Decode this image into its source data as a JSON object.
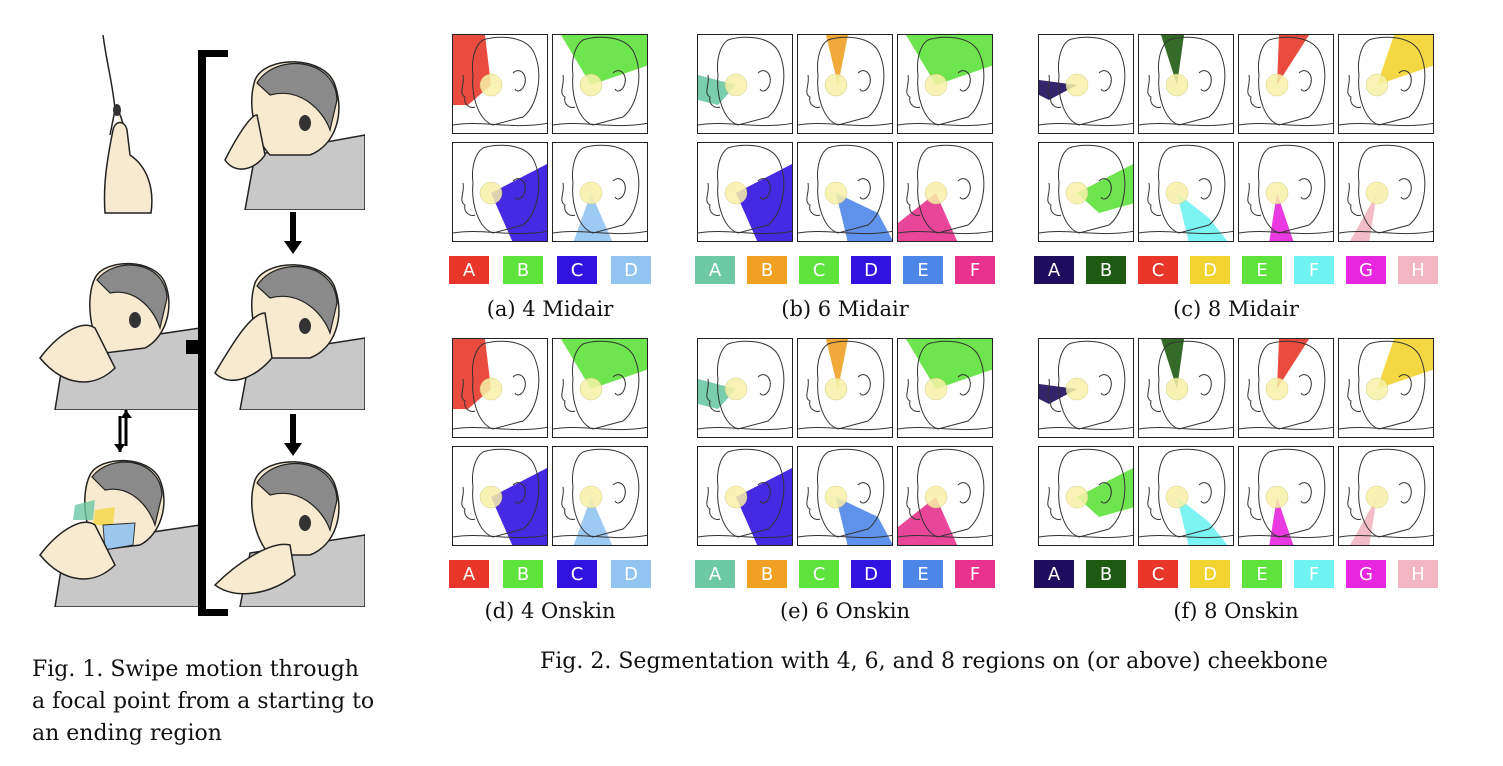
{
  "fig1": {
    "caption_lines": [
      "Fig. 1.  Swipe motion through",
      "a focal point from a starting to",
      "an ending region"
    ]
  },
  "fig2": {
    "caption": "Fig. 2.  Segmentation with 4, 6, and 8 regions on (or above) cheekbone",
    "panels": [
      {
        "caption": "(a) 4 Midair",
        "labels": [
          {
            "text": "A",
            "color": "#e8372a"
          },
          {
            "text": "B",
            "color": "#5ee23c"
          },
          {
            "text": "C",
            "color": "#3212e0"
          },
          {
            "text": "D",
            "color": "#92c4f2"
          }
        ]
      },
      {
        "caption": "(b) 6 Midair",
        "labels": [
          {
            "text": "A",
            "color": "#6cc9a4"
          },
          {
            "text": "B",
            "color": "#f0a023"
          },
          {
            "text": "C",
            "color": "#5ee23c"
          },
          {
            "text": "D",
            "color": "#3212e0"
          },
          {
            "text": "E",
            "color": "#4e86e8"
          },
          {
            "text": "F",
            "color": "#e8328e"
          }
        ]
      },
      {
        "caption": "(c) 8 Midair",
        "labels": [
          {
            "text": "A",
            "color": "#1e0c5c"
          },
          {
            "text": "B",
            "color": "#1f5a12"
          },
          {
            "text": "C",
            "color": "#e8372a"
          },
          {
            "text": "D",
            "color": "#f2d430"
          },
          {
            "text": "E",
            "color": "#5ee23c"
          },
          {
            "text": "F",
            "color": "#6ef2f2"
          },
          {
            "text": "G",
            "color": "#e826e0"
          },
          {
            "text": "H",
            "color": "#f2b6c2"
          }
        ]
      },
      {
        "caption": "(d) 4 Onskin",
        "labels": [
          {
            "text": "A",
            "color": "#e8372a"
          },
          {
            "text": "B",
            "color": "#5ee23c"
          },
          {
            "text": "C",
            "color": "#3212e0"
          },
          {
            "text": "D",
            "color": "#92c4f2"
          }
        ]
      },
      {
        "caption": "(e) 6 Onskin",
        "labels": [
          {
            "text": "A",
            "color": "#6cc9a4"
          },
          {
            "text": "B",
            "color": "#f0a023"
          },
          {
            "text": "C",
            "color": "#5ee23c"
          },
          {
            "text": "D",
            "color": "#3212e0"
          },
          {
            "text": "E",
            "color": "#4e86e8"
          },
          {
            "text": "F",
            "color": "#e8328e"
          }
        ]
      },
      {
        "caption": "(f) 8 Onskin",
        "labels": [
          {
            "text": "A",
            "color": "#1e0c5c"
          },
          {
            "text": "B",
            "color": "#1f5a12"
          },
          {
            "text": "C",
            "color": "#e8372a"
          },
          {
            "text": "D",
            "color": "#f2d430"
          },
          {
            "text": "E",
            "color": "#5ee23c"
          },
          {
            "text": "F",
            "color": "#6ef2f2"
          },
          {
            "text": "G",
            "color": "#e826e0"
          },
          {
            "text": "H",
            "color": "#f2b6c2"
          }
        ]
      }
    ]
  }
}
